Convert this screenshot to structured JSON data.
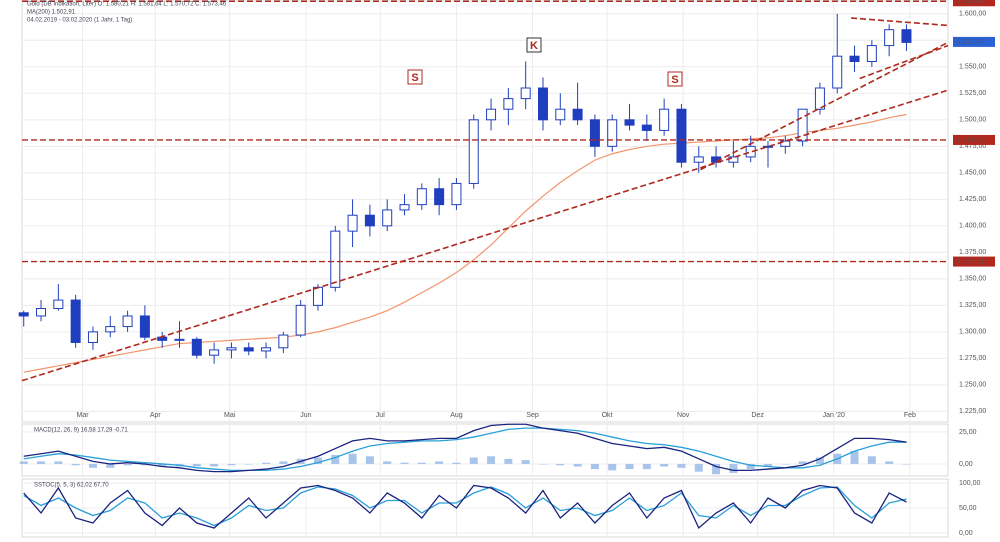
{
  "chart_data": [
    {
      "type": "candlestick",
      "title": "Gold (DB Indikation, Liter)  O: 1.580,21  H: 1.581,64  L: 1.570,72  C: 1.573,46",
      "subtitle": "MA(200) 1.502,91",
      "date_range": "04.02.2019 - 03.02.2020 (1 Jahr, 1 Tag)",
      "annotations": [
        "S",
        "K",
        "S"
      ],
      "x": [
        0,
        1,
        2,
        3,
        4,
        5,
        6,
        7,
        8,
        9,
        10,
        11,
        12,
        13,
        14,
        15,
        16,
        17,
        18,
        19,
        20,
        21,
        22,
        23,
        24,
        25,
        26,
        27,
        28,
        29,
        30,
        31,
        32,
        33,
        34,
        35,
        36,
        37,
        38,
        39,
        40,
        41,
        42,
        43,
        44,
        45,
        46,
        47,
        48,
        49,
        50,
        51
      ],
      "open": [
        1318,
        1315,
        1322,
        1330,
        1290,
        1300,
        1305,
        1315,
        1295,
        1292,
        1293,
        1278,
        1283,
        1285,
        1282,
        1285,
        1297,
        1325,
        1342,
        1395,
        1410,
        1400,
        1415,
        1420,
        1435,
        1420,
        1440,
        1500,
        1510,
        1520,
        1530,
        1500,
        1510,
        1500,
        1475,
        1500,
        1495,
        1490,
        1510,
        1460,
        1465,
        1460,
        1465,
        1475,
        1475,
        1480,
        1510,
        1530,
        1560,
        1555,
        1570,
        1585
      ],
      "high": [
        1320,
        1330,
        1345,
        1335,
        1305,
        1315,
        1320,
        1325,
        1300,
        1310,
        1295,
        1290,
        1290,
        1290,
        1290,
        1300,
        1330,
        1345,
        1400,
        1425,
        1420,
        1425,
        1430,
        1440,
        1445,
        1445,
        1505,
        1520,
        1530,
        1555,
        1540,
        1525,
        1535,
        1505,
        1505,
        1515,
        1505,
        1520,
        1515,
        1475,
        1475,
        1480,
        1485,
        1480,
        1485,
        1510,
        1535,
        1600,
        1570,
        1575,
        1590,
        1590
      ],
      "low": [
        1305,
        1310,
        1320,
        1285,
        1283,
        1295,
        1300,
        1292,
        1285,
        1285,
        1275,
        1270,
        1275,
        1278,
        1275,
        1280,
        1295,
        1320,
        1338,
        1380,
        1390,
        1395,
        1410,
        1415,
        1410,
        1415,
        1435,
        1490,
        1495,
        1510,
        1490,
        1495,
        1495,
        1465,
        1470,
        1490,
        1480,
        1485,
        1455,
        1450,
        1455,
        1455,
        1460,
        1455,
        1468,
        1475,
        1505,
        1525,
        1545,
        1550,
        1560,
        1565
      ],
      "close": [
        1315,
        1322,
        1330,
        1290,
        1300,
        1305,
        1315,
        1295,
        1292,
        1293,
        1278,
        1283,
        1285,
        1282,
        1285,
        1297,
        1325,
        1342,
        1395,
        1410,
        1400,
        1415,
        1420,
        1435,
        1420,
        1440,
        1500,
        1510,
        1520,
        1530,
        1500,
        1510,
        1500,
        1475,
        1500,
        1495,
        1490,
        1510,
        1460,
        1465,
        1460,
        1465,
        1475,
        1475,
        1480,
        1510,
        1530,
        1560,
        1555,
        1570,
        1585,
        1573
      ],
      "color_up": "#ffffff",
      "color_down": "#1f3fbf",
      "color_edge": "#1f3fbf",
      "series": [
        {
          "color": "#f2956b",
          "values": [
            1262,
            1265,
            1268,
            1271,
            1274,
            1277,
            1280,
            1283,
            1286,
            1289,
            1290,
            1291,
            1292,
            1293,
            1294,
            1295,
            1297,
            1300,
            1304,
            1309,
            1314,
            1320,
            1328,
            1337,
            1346,
            1356,
            1368,
            1382,
            1398,
            1414,
            1428,
            1441,
            1452,
            1462,
            1468,
            1472,
            1475,
            1477,
            1478,
            1479,
            1480,
            1481,
            1482,
            1483,
            1485,
            1488,
            1490,
            1492,
            1495,
            1498,
            1502,
            1505
          ]
        }
      ],
      "xlim": [
        -0.1,
        53.4
      ],
      "xticks": [
        {
          "value": 3.4,
          "label": "Mar"
        },
        {
          "value": 7.6,
          "label": "Apr"
        },
        {
          "value": 11.9,
          "label": "Mai"
        },
        {
          "value": 16.3,
          "label": "Jun"
        },
        {
          "value": 20.6,
          "label": "Jul"
        },
        {
          "value": 25.0,
          "label": "Aug"
        },
        {
          "value": 29.4,
          "label": "Sep"
        },
        {
          "value": 33.7,
          "label": "Okt"
        },
        {
          "value": 38.1,
          "label": "Nov"
        },
        {
          "value": 42.4,
          "label": "Dez"
        },
        {
          "value": 46.8,
          "label": "Jan '20"
        },
        {
          "value": 51.2,
          "label": "Feb"
        }
      ],
      "ylim": [
        1215,
        1613
      ],
      "yticks": [
        {
          "value": 1225,
          "label": "1.225,00"
        },
        {
          "value": 1250,
          "label": "1.250,00"
        },
        {
          "value": 1275,
          "label": "1.275,00"
        },
        {
          "value": 1300,
          "label": "1.300,00"
        },
        {
          "value": 1325,
          "label": "1.325,00"
        },
        {
          "value": 1350,
          "label": "1.350,00"
        },
        {
          "value": 1375,
          "label": "1.375,00"
        },
        {
          "value": 1400,
          "label": "1.400,00"
        },
        {
          "value": 1425,
          "label": "1.425,00"
        },
        {
          "value": 1450,
          "label": "1.450,00"
        },
        {
          "value": 1475,
          "label": "1.475,00"
        },
        {
          "value": 1500,
          "label": "1.500,00"
        },
        {
          "value": 1525,
          "label": "1.525,00"
        },
        {
          "value": 1550,
          "label": "1.550,00"
        },
        {
          "value": 1575,
          "label": "1.575,00"
        },
        {
          "value": 1600,
          "label": "1.600,00"
        }
      ],
      "grid": true,
      "levels": [
        {
          "value": 1611.81,
          "label": "1.611,81",
          "color": "#b0281e"
        },
        {
          "value": 1481.02,
          "label": "1.481,02",
          "color": "#b0281e"
        },
        {
          "value": 1366.31,
          "label": "1.366,31",
          "color": "#b0281e"
        }
      ],
      "last_price": {
        "value": 1573.46,
        "label": "1.573,46",
        "color": "#2a62d6"
      },
      "trendlines": [
        {
          "color": "#b0281e",
          "points": [
            [
              -0.1,
              1254
            ],
            [
              53.4,
              1528
            ]
          ]
        },
        {
          "color": "#b0281e",
          "points": [
            [
              39.1,
              1453
            ],
            [
              53.4,
              1573
            ]
          ]
        },
        {
          "color": "#b0281e",
          "points": [
            [
              47.8,
              1596
            ],
            [
              53.4,
              1589
            ]
          ]
        },
        {
          "color": "#b0281e",
          "points": [
            [
              48.3,
              1539
            ],
            [
              53.4,
              1570
            ]
          ]
        }
      ]
    },
    {
      "type": "macd",
      "title": "MACD(12, 26, 9)  16,58  17,29  -0,71",
      "macd": {
        "color": "#1a237e",
        "values": [
          6,
          8,
          10,
          6,
          2,
          0,
          1,
          0,
          -2,
          -3,
          -5,
          -6,
          -6,
          -5,
          -4,
          -2,
          2,
          6,
          12,
          18,
          20,
          18,
          18,
          19,
          20,
          20,
          26,
          30,
          31,
          31,
          28,
          26,
          24,
          20,
          16,
          14,
          12,
          13,
          10,
          4,
          -2,
          -5,
          -5,
          -4,
          -3,
          -1,
          4,
          12,
          20,
          20,
          19,
          17
        ]
      },
      "signal": {
        "color": "#2a9fd8",
        "values": [
          4,
          6,
          8,
          7,
          5,
          3,
          2,
          1,
          0,
          -1,
          -3,
          -4,
          -5,
          -5,
          -5,
          -4,
          -2,
          1,
          5,
          10,
          14,
          16,
          17,
          18,
          18,
          19,
          21,
          24,
          27,
          28,
          28,
          27,
          26,
          24,
          21,
          18,
          16,
          15,
          13,
          10,
          6,
          2,
          -1,
          -2,
          -3,
          -3,
          -1,
          4,
          10,
          14,
          17,
          17
        ]
      },
      "histogram": {
        "color": "#a9c4ea",
        "values": [
          2,
          2,
          2,
          -1,
          -3,
          -3,
          -1,
          -1,
          -2,
          -2,
          -2,
          -2,
          -1,
          0,
          1,
          2,
          4,
          5,
          7,
          8,
          6,
          2,
          1,
          1,
          2,
          1,
          5,
          6,
          4,
          3,
          0,
          -1,
          -2,
          -4,
          -5,
          -4,
          -4,
          -2,
          -3,
          -6,
          -8,
          -7,
          -4,
          -2,
          0,
          2,
          5,
          8,
          10,
          6,
          2,
          0
        ]
      },
      "ylim": [
        -9.4,
        31.2
      ],
      "yticks": [
        {
          "value": 25,
          "label": "25,00"
        },
        {
          "value": 0,
          "label": "0,00"
        }
      ]
    },
    {
      "type": "stochastic",
      "title": "SSTOC(5, 5, 3)  62,02  67,70",
      "k": {
        "color": "#1a237e",
        "values": [
          80,
          40,
          90,
          30,
          20,
          60,
          85,
          40,
          15,
          50,
          20,
          10,
          40,
          70,
          30,
          60,
          90,
          95,
          85,
          70,
          40,
          80,
          60,
          30,
          75,
          50,
          95,
          90,
          70,
          40,
          85,
          30,
          60,
          20,
          55,
          80,
          30,
          70,
          85,
          10,
          40,
          60,
          20,
          70,
          50,
          85,
          95,
          90,
          40,
          20,
          80,
          62
        ]
      },
      "d": {
        "color": "#2a9fd8",
        "values": [
          75,
          55,
          70,
          50,
          35,
          45,
          70,
          60,
          30,
          40,
          30,
          15,
          30,
          55,
          45,
          50,
          80,
          92,
          88,
          75,
          50,
          65,
          65,
          40,
          60,
          60,
          80,
          92,
          78,
          50,
          70,
          45,
          50,
          35,
          45,
          70,
          45,
          55,
          80,
          35,
          30,
          55,
          35,
          55,
          55,
          75,
          90,
          92,
          55,
          30,
          60,
          68
        ]
      },
      "ylim": [
        -8,
        108
      ],
      "yticks": [
        {
          "value": 100,
          "label": "100,00"
        },
        {
          "value": 50,
          "label": "50,00"
        },
        {
          "value": 0,
          "label": "0,00"
        }
      ]
    }
  ]
}
